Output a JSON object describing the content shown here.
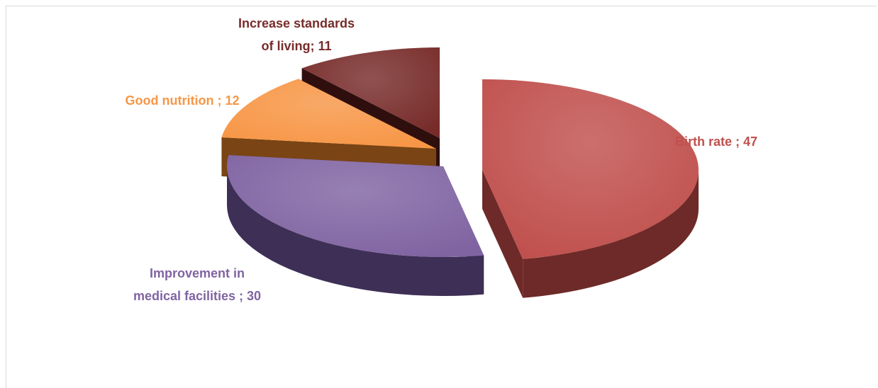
{
  "chart_data": {
    "type": "pie",
    "style": "3d-exploded",
    "title": "",
    "slices": [
      {
        "label": "Birth rate",
        "value": 47,
        "color": "#c0504d",
        "side_color": "#6e2a28",
        "text_color": "#c0504d"
      },
      {
        "label": "Improvement in medical facilities",
        "value": 30,
        "color": "#8064a2",
        "side_color": "#3d2f55",
        "text_color": "#8064a2"
      },
      {
        "label": "Good nutrition",
        "value": 12,
        "color": "#f79646",
        "side_color": "#7a4414",
        "text_color": "#f79646"
      },
      {
        "label": "Increase standards of living",
        "value": 11,
        "color": "#772c2a",
        "side_color": "#2f0f0e",
        "text_color": "#772c2a"
      }
    ],
    "data_labels": [
      {
        "lines": [
          "Birth rate ; 47"
        ]
      },
      {
        "lines": [
          "Improvement in",
          "medical facilities ; 30"
        ]
      },
      {
        "lines": [
          "Good nutrition ; 12"
        ]
      },
      {
        "lines": [
          "Increase standards",
          "of living; 11"
        ]
      }
    ],
    "legend": "none"
  }
}
